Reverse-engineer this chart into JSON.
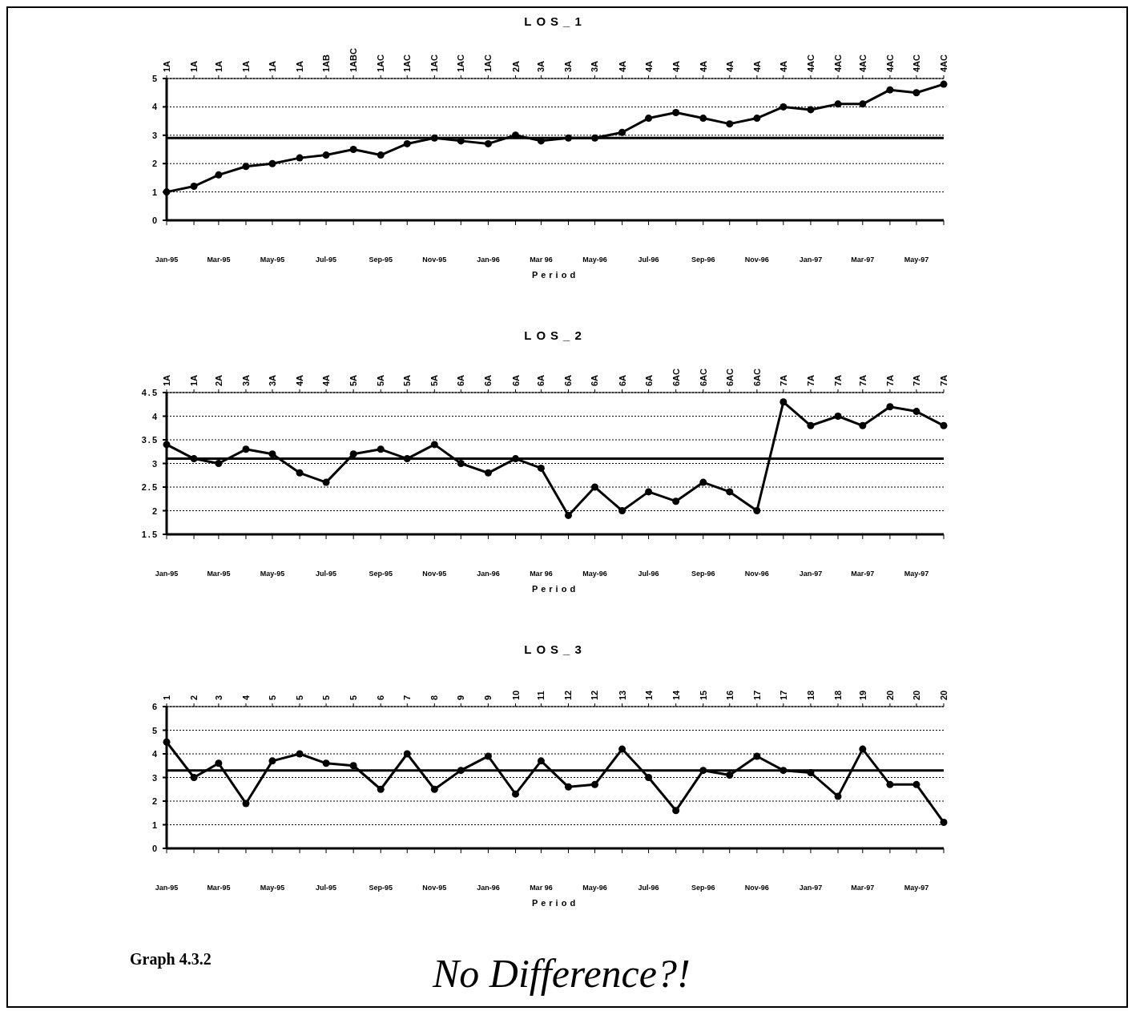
{
  "chart_data": [
    {
      "type": "line",
      "title": "LOS_1",
      "xlabel": "Period",
      "x": [
        "1995-01",
        "1995-02",
        "1995-03",
        "1995-04",
        "1995-05",
        "1995-06",
        "1995-07",
        "1995-08",
        "1995-09",
        "1995-10",
        "1995-11",
        "1995-12",
        "1996-01",
        "1996-02",
        "1996-03",
        "1996-04",
        "1996-05",
        "1996-06",
        "1996-07",
        "1996-08",
        "1996-09",
        "1996-10",
        "1996-11",
        "1996-12",
        "1997-01",
        "1997-02",
        "1997-03",
        "1997-04",
        "1997-05",
        "1997-06"
      ],
      "xlim": [
        "1995-01",
        "1997-06"
      ],
      "xticks": [
        {
          "value": "1995-01",
          "label": "Jan-95"
        },
        {
          "value": "1995-03",
          "label": "Mar-95"
        },
        {
          "value": "1995-05",
          "label": "May-95"
        },
        {
          "value": "1995-07",
          "label": "Jul-95"
        },
        {
          "value": "1995-09",
          "label": "Sep-95"
        },
        {
          "value": "1995-11",
          "label": "Nov-95"
        },
        {
          "value": "1996-01",
          "label": "Jan-96"
        },
        {
          "value": "1996-03",
          "label": "Mar 96"
        },
        {
          "value": "1996-05",
          "label": "May-96"
        },
        {
          "value": "1996-07",
          "label": "Jul-96"
        },
        {
          "value": "1996-09",
          "label": "Sep-96"
        },
        {
          "value": "1996-11",
          "label": "Nov-96"
        },
        {
          "value": "1997-01",
          "label": "Jan-97"
        },
        {
          "value": "1997-03",
          "label": "Mar-97"
        },
        {
          "value": "1997-05",
          "label": "May-97"
        }
      ],
      "series": [
        {
          "color": "#000000",
          "values": [
            1.0,
            1.2,
            1.6,
            1.9,
            2.0,
            2.2,
            2.3,
            2.5,
            2.3,
            2.7,
            2.9,
            2.8,
            2.7,
            3.0,
            2.8,
            2.9,
            2.9,
            3.1,
            3.6,
            3.8,
            3.6,
            3.4,
            3.6,
            4.0,
            3.9,
            4.1,
            4.1,
            4.6,
            4.5,
            4.8
          ]
        }
      ],
      "ylim": [
        0,
        5
      ],
      "yticks": [
        0,
        1,
        2,
        3,
        4,
        5
      ],
      "annotations": [
        "1A",
        "1A",
        "1A",
        "1A",
        "1A",
        "1A",
        "1AB",
        "1ABC",
        "1AC",
        "1AC",
        "1AC",
        "1AC",
        "1AC",
        "2A",
        "3A",
        "3A",
        "3A",
        "4A",
        "4A",
        "4A",
        "4A",
        "4A",
        "4A",
        "4A",
        "4AC",
        "4AC",
        "4AC",
        "4AC",
        "4AC",
        "4AC"
      ],
      "ref_lines": [
        {
          "axis": "y",
          "value": 2.9,
          "color": "#000000"
        }
      ],
      "grid": "y",
      "marker": "circle",
      "line_style": "solid"
    },
    {
      "type": "line",
      "title": "LOS_2",
      "xlabel": "Period",
      "x": [
        "1995-01",
        "1995-02",
        "1995-03",
        "1995-04",
        "1995-05",
        "1995-06",
        "1995-07",
        "1995-08",
        "1995-09",
        "1995-10",
        "1995-11",
        "1995-12",
        "1996-01",
        "1996-02",
        "1996-03",
        "1996-04",
        "1996-05",
        "1996-06",
        "1996-07",
        "1996-08",
        "1996-09",
        "1996-10",
        "1996-11",
        "1996-12",
        "1997-01",
        "1997-02",
        "1997-03",
        "1997-04",
        "1997-05",
        "1997-06"
      ],
      "xlim": [
        "1995-01",
        "1997-06"
      ],
      "xticks": [
        {
          "value": "1995-01",
          "label": "Jan-95"
        },
        {
          "value": "1995-03",
          "label": "Mar-95"
        },
        {
          "value": "1995-05",
          "label": "May-95"
        },
        {
          "value": "1995-07",
          "label": "Jul-95"
        },
        {
          "value": "1995-09",
          "label": "Sep-95"
        },
        {
          "value": "1995-11",
          "label": "Nov-95"
        },
        {
          "value": "1996-01",
          "label": "Jan-96"
        },
        {
          "value": "1996-03",
          "label": "Mar 96"
        },
        {
          "value": "1996-05",
          "label": "May-96"
        },
        {
          "value": "1996-07",
          "label": "Jul-96"
        },
        {
          "value": "1996-09",
          "label": "Sep-96"
        },
        {
          "value": "1996-11",
          "label": "Nov-96"
        },
        {
          "value": "1997-01",
          "label": "Jan-97"
        },
        {
          "value": "1997-03",
          "label": "Mar-97"
        },
        {
          "value": "1997-05",
          "label": "May-97"
        }
      ],
      "series": [
        {
          "color": "#000000",
          "values": [
            3.4,
            3.1,
            3.0,
            3.3,
            3.2,
            2.8,
            2.6,
            3.2,
            3.3,
            3.1,
            3.4,
            3.0,
            2.8,
            3.1,
            2.9,
            1.9,
            2.5,
            2.0,
            2.4,
            2.2,
            2.6,
            2.4,
            2.0,
            4.3,
            3.8,
            4.0,
            3.8,
            4.2,
            4.1,
            3.8
          ]
        }
      ],
      "ylim": [
        1.5,
        4.5
      ],
      "yticks": [
        {
          "value": 1.5,
          "label": "1.5"
        },
        2,
        {
          "value": 2.5,
          "label": "2.5"
        },
        3,
        {
          "value": 3.5,
          "label": "3.5"
        },
        4,
        {
          "value": 4.5,
          "label": "4.5"
        }
      ],
      "annotations": [
        "1A",
        "1A",
        "2A",
        "3A",
        "3A",
        "4A",
        "4A",
        "5A",
        "5A",
        "5A",
        "5A",
        "6A",
        "6A",
        "6A",
        "6A",
        "6A",
        "6A",
        "6A",
        "6A",
        "6AC",
        "6AC",
        "6AC",
        "6AC",
        "7A",
        "7A",
        "7A",
        "7A",
        "7A",
        "7A",
        "7A"
      ],
      "ref_lines": [
        {
          "axis": "y",
          "value": 3.1,
          "color": "#000000"
        }
      ],
      "grid": "y",
      "marker": "circle",
      "line_style": "solid"
    },
    {
      "type": "line",
      "title": "LOS_3",
      "xlabel": "Period",
      "x": [
        "1995-01",
        "1995-02",
        "1995-03",
        "1995-04",
        "1995-05",
        "1995-06",
        "1995-07",
        "1995-08",
        "1995-09",
        "1995-10",
        "1995-11",
        "1995-12",
        "1996-01",
        "1996-02",
        "1996-03",
        "1996-04",
        "1996-05",
        "1996-06",
        "1996-07",
        "1996-08",
        "1996-09",
        "1996-10",
        "1996-11",
        "1996-12",
        "1997-01",
        "1997-02",
        "1997-03",
        "1997-04",
        "1997-05",
        "1997-06"
      ],
      "xlim": [
        "1995-01",
        "1997-06"
      ],
      "xticks": [
        {
          "value": "1995-01",
          "label": "Jan-95"
        },
        {
          "value": "1995-03",
          "label": "Mar-95"
        },
        {
          "value": "1995-05",
          "label": "May-95"
        },
        {
          "value": "1995-07",
          "label": "Jul-95"
        },
        {
          "value": "1995-09",
          "label": "Sep-95"
        },
        {
          "value": "1995-11",
          "label": "Nov-95"
        },
        {
          "value": "1996-01",
          "label": "Jan-96"
        },
        {
          "value": "1996-03",
          "label": "Mar 96"
        },
        {
          "value": "1996-05",
          "label": "May-96"
        },
        {
          "value": "1996-07",
          "label": "Jul-96"
        },
        {
          "value": "1996-09",
          "label": "Sep-96"
        },
        {
          "value": "1996-11",
          "label": "Nov-96"
        },
        {
          "value": "1997-01",
          "label": "Jan-97"
        },
        {
          "value": "1997-03",
          "label": "Mar-97"
        },
        {
          "value": "1997-05",
          "label": "May-97"
        }
      ],
      "series": [
        {
          "color": "#000000",
          "values": [
            4.5,
            3.0,
            3.6,
            1.9,
            3.7,
            4.0,
            3.6,
            3.5,
            2.5,
            4.0,
            2.5,
            3.3,
            3.9,
            2.3,
            3.7,
            2.6,
            2.7,
            4.2,
            3.0,
            1.6,
            3.3,
            3.1,
            3.9,
            3.3,
            3.2,
            2.2,
            4.2,
            2.7,
            2.7,
            1.1
          ]
        }
      ],
      "ylim": [
        0,
        6
      ],
      "yticks": [
        0,
        1,
        2,
        3,
        4,
        5,
        6
      ],
      "annotations": [
        "1",
        "2",
        "3",
        "4",
        "5",
        "5",
        "5",
        "5",
        "6",
        "7",
        "8",
        "9",
        "9",
        "10",
        "11",
        "12",
        "12",
        "13",
        "14",
        "14",
        "15",
        "16",
        "17",
        "17",
        "18",
        "18",
        "19",
        "20",
        "20",
        "20",
        "Graph 4.3.2",
        "No Difference?!"
      ],
      "ref_lines": [
        {
          "axis": "y",
          "value": 3.3,
          "color": "#000000"
        }
      ],
      "grid": "y",
      "marker": "circle",
      "line_style": "solid"
    }
  ]
}
